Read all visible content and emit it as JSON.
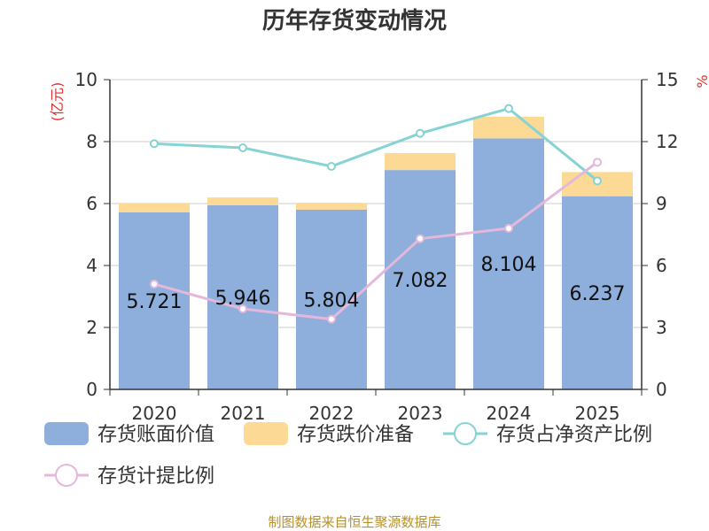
{
  "chart_data": {
    "type": "bar",
    "title": "历年存货变动情况",
    "categories": [
      "2020",
      "2021",
      "2022",
      "2023",
      "2024",
      "2025"
    ],
    "y_left": {
      "unit": "(亿元)",
      "range": [
        0,
        10
      ],
      "ticks": [
        "0",
        "2",
        "4",
        "6",
        "8",
        "10"
      ]
    },
    "y_right": {
      "unit": "%",
      "range": [
        0,
        15
      ],
      "ticks": [
        "0",
        "3",
        "6",
        "9",
        "12",
        "15"
      ]
    },
    "series": [
      {
        "name": "存货账面价值",
        "type": "bar",
        "axis": "left",
        "stack": "inv",
        "color": "#8eaedb",
        "values": [
          5.721,
          5.946,
          5.804,
          7.082,
          8.104,
          6.237
        ],
        "labels": [
          "5.721",
          "5.946",
          "5.804",
          "7.082",
          "8.104",
          "6.237"
        ]
      },
      {
        "name": "存货跌价准备",
        "type": "bar",
        "axis": "left",
        "stack": "inv",
        "color": "#fcd995",
        "values": [
          0.3,
          0.25,
          0.22,
          0.55,
          0.7,
          0.78
        ]
      },
      {
        "name": "存货占净资产比例",
        "type": "line",
        "axis": "right",
        "color": "#86d3d3",
        "values": [
          11.9,
          11.7,
          10.8,
          12.4,
          13.6,
          10.1
        ]
      },
      {
        "name": "存货计提比例",
        "type": "line",
        "axis": "right",
        "color": "#e4b8db",
        "values": [
          5.1,
          3.9,
          3.4,
          7.3,
          7.8,
          11.0
        ]
      }
    ],
    "grid": true,
    "legend": "bottom",
    "source": "制图数据来自恒生聚源数据库"
  }
}
